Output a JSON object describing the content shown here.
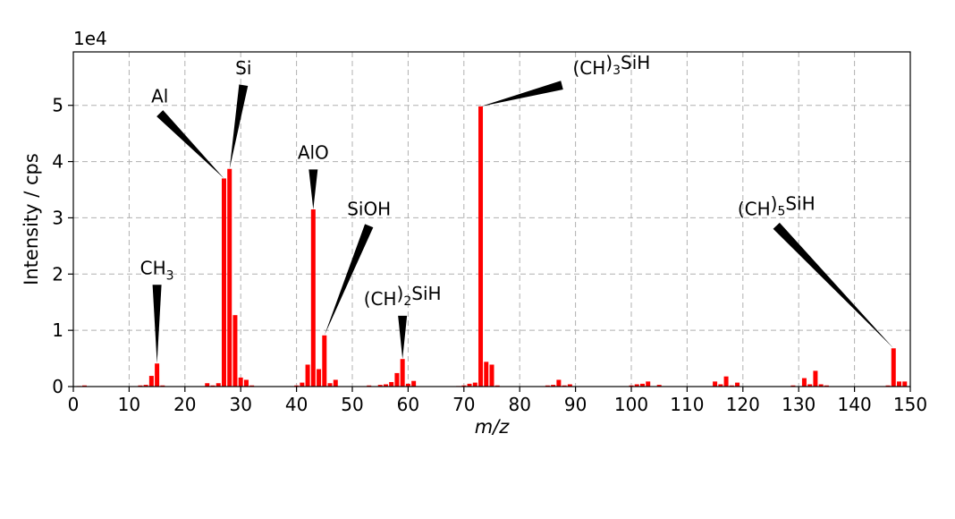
{
  "chart_data": {
    "type": "bar",
    "xlabel": "m/z",
    "ylabel": "Intensity / cps",
    "y_multiplier_label": "1e4",
    "xlim": [
      0,
      150
    ],
    "ylim": [
      0,
      5.95
    ],
    "x_ticks": [
      0,
      10,
      20,
      30,
      40,
      50,
      60,
      70,
      80,
      90,
      100,
      110,
      120,
      130,
      140,
      150
    ],
    "y_ticks": [
      0,
      1,
      2,
      3,
      4,
      5
    ],
    "grid": true,
    "bar_color": "#ff0000",
    "bars": [
      {
        "x": 1,
        "y": 0.01
      },
      {
        "x": 2,
        "y": 0.02
      },
      {
        "x": 12,
        "y": 0.02
      },
      {
        "x": 13,
        "y": 0.03
      },
      {
        "x": 14,
        "y": 0.19
      },
      {
        "x": 15,
        "y": 0.41
      },
      {
        "x": 16,
        "y": 0.02
      },
      {
        "x": 24,
        "y": 0.06
      },
      {
        "x": 25,
        "y": 0.02
      },
      {
        "x": 26,
        "y": 0.06
      },
      {
        "x": 27,
        "y": 3.7
      },
      {
        "x": 28,
        "y": 3.87
      },
      {
        "x": 29,
        "y": 1.27
      },
      {
        "x": 30,
        "y": 0.16
      },
      {
        "x": 31,
        "y": 0.12
      },
      {
        "x": 32,
        "y": 0.02
      },
      {
        "x": 40,
        "y": 0.02
      },
      {
        "x": 41,
        "y": 0.07
      },
      {
        "x": 42,
        "y": 0.39
      },
      {
        "x": 43,
        "y": 3.15
      },
      {
        "x": 44,
        "y": 0.31
      },
      {
        "x": 45,
        "y": 0.91
      },
      {
        "x": 46,
        "y": 0.06
      },
      {
        "x": 47,
        "y": 0.12
      },
      {
        "x": 53,
        "y": 0.02
      },
      {
        "x": 55,
        "y": 0.03
      },
      {
        "x": 56,
        "y": 0.04
      },
      {
        "x": 57,
        "y": 0.08
      },
      {
        "x": 58,
        "y": 0.24
      },
      {
        "x": 59,
        "y": 0.49
      },
      {
        "x": 60,
        "y": 0.05
      },
      {
        "x": 61,
        "y": 0.1
      },
      {
        "x": 69,
        "y": 0.01
      },
      {
        "x": 70,
        "y": 0.02
      },
      {
        "x": 71,
        "y": 0.05
      },
      {
        "x": 72,
        "y": 0.07
      },
      {
        "x": 73,
        "y": 4.98
      },
      {
        "x": 74,
        "y": 0.44
      },
      {
        "x": 75,
        "y": 0.39
      },
      {
        "x": 76,
        "y": 0.02
      },
      {
        "x": 85,
        "y": 0.02
      },
      {
        "x": 86,
        "y": 0.03
      },
      {
        "x": 87,
        "y": 0.12
      },
      {
        "x": 88,
        "y": 0.02
      },
      {
        "x": 89,
        "y": 0.04
      },
      {
        "x": 100,
        "y": 0.02
      },
      {
        "x": 101,
        "y": 0.04
      },
      {
        "x": 102,
        "y": 0.05
      },
      {
        "x": 103,
        "y": 0.09
      },
      {
        "x": 105,
        "y": 0.03
      },
      {
        "x": 115,
        "y": 0.09
      },
      {
        "x": 116,
        "y": 0.04
      },
      {
        "x": 117,
        "y": 0.18
      },
      {
        "x": 118,
        "y": 0.02
      },
      {
        "x": 119,
        "y": 0.07
      },
      {
        "x": 129,
        "y": 0.02
      },
      {
        "x": 131,
        "y": 0.15
      },
      {
        "x": 132,
        "y": 0.04
      },
      {
        "x": 133,
        "y": 0.28
      },
      {
        "x": 134,
        "y": 0.04
      },
      {
        "x": 135,
        "y": 0.02
      },
      {
        "x": 146,
        "y": 0.02
      },
      {
        "x": 147,
        "y": 0.68
      },
      {
        "x": 148,
        "y": 0.09
      },
      {
        "x": 149,
        "y": 0.09
      }
    ],
    "annotations": [
      {
        "label": "CH",
        "sub": "3",
        "suffix": "",
        "target_x": 15,
        "target_y": 0.41,
        "text_x": 15,
        "text_y": 2.0,
        "text_anchor": "middle"
      },
      {
        "label": "Al",
        "sub": "",
        "suffix": "",
        "target_x": 27,
        "target_y": 3.7,
        "text_x": 15.5,
        "text_y": 5.05,
        "text_anchor": "middle"
      },
      {
        "label": "Si",
        "sub": "",
        "suffix": "",
        "target_x": 28,
        "target_y": 3.87,
        "text_x": 30.5,
        "text_y": 5.55,
        "text_anchor": "middle"
      },
      {
        "label": "AlO",
        "sub": "",
        "suffix": "",
        "target_x": 43,
        "target_y": 3.15,
        "text_x": 43,
        "text_y": 4.05,
        "text_anchor": "middle"
      },
      {
        "label": "SiOH",
        "sub": "",
        "suffix": "",
        "target_x": 45,
        "target_y": 0.91,
        "text_x": 53,
        "text_y": 3.05,
        "text_anchor": "middle"
      },
      {
        "label": "(CH",
        "sub": "2",
        "suffix": ")SiH",
        "target_x": 59,
        "target_y": 0.49,
        "text_x": 59,
        "text_y": 1.45,
        "text_anchor": "middle"
      },
      {
        "label": "(CH",
        "sub": "3",
        "suffix": ")SiH",
        "target_x": 73,
        "target_y": 4.98,
        "text_x": 89.5,
        "text_y": 5.55,
        "text_anchor": "start"
      },
      {
        "label": "(CH",
        "sub": "5",
        "suffix": ")SiH",
        "target_x": 147,
        "target_y": 0.68,
        "text_x": 126,
        "text_y": 3.05,
        "text_anchor": "middle"
      }
    ]
  }
}
